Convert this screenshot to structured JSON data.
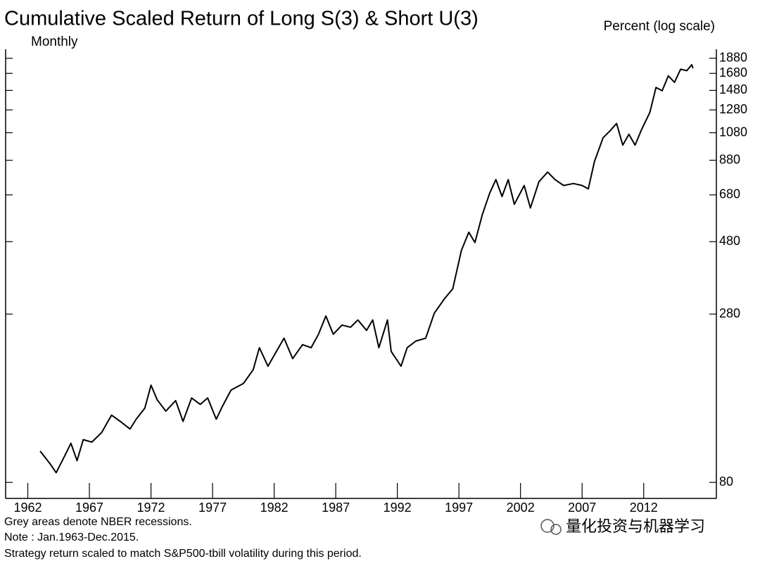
{
  "chart_data": {
    "type": "line",
    "title": "Cumulative Scaled Return of Long S(3) & Short U(3)",
    "subtitle": "Monthly",
    "y_axis_label": "Percent (log scale)",
    "notes": [
      "Grey areas denote NBER recessions.",
      "Note : Jan.1963-Dec.2015.",
      "Strategy return scaled to match S&P500-tbill volatility during this period."
    ],
    "watermark": "量化投资与机器学习",
    "log_scale": true,
    "color": "#000000",
    "xlim": [
      1960.2,
      2017.9
    ],
    "ylim": [
      71,
      2010
    ],
    "xticks": [
      1962,
      1967,
      1972,
      1977,
      1982,
      1987,
      1992,
      1997,
      2002,
      2007,
      2012
    ],
    "yticks": [
      80,
      280,
      480,
      680,
      880,
      1080,
      1280,
      1480,
      1680,
      1880
    ],
    "x": [
      1963.0,
      1963.8,
      1964.3,
      1964.8,
      1965.5,
      1966.0,
      1966.5,
      1967.2,
      1968.0,
      1968.8,
      1969.5,
      1970.3,
      1970.8,
      1971.5,
      1972.0,
      1972.5,
      1973.2,
      1974.0,
      1974.6,
      1975.3,
      1976.0,
      1976.6,
      1977.3,
      1977.8,
      1978.5,
      1979.5,
      1980.3,
      1980.8,
      1981.5,
      1982.0,
      1982.8,
      1983.5,
      1984.3,
      1985.0,
      1985.6,
      1986.2,
      1986.8,
      1987.5,
      1988.2,
      1988.8,
      1989.5,
      1990.0,
      1990.5,
      1991.2,
      1991.5,
      1992.3,
      1992.8,
      1993.5,
      1994.3,
      1995.0,
      1995.8,
      1996.5,
      1997.2,
      1997.8,
      1998.3,
      1998.9,
      1999.5,
      2000.0,
      2000.5,
      2001.0,
      2001.5,
      2002.3,
      2002.8,
      2003.5,
      2004.2,
      2004.8,
      2005.5,
      2006.3,
      2007.0,
      2007.5,
      2008.0,
      2008.7,
      2009.3,
      2009.8,
      2010.3,
      2010.8,
      2011.3,
      2011.8,
      2012.5,
      2013.0,
      2013.5,
      2014.0,
      2014.5,
      2015.0,
      2015.5,
      2015.9,
      2016.0
    ],
    "values": [
      101,
      92,
      86,
      94,
      107,
      94,
      110,
      108,
      116,
      132,
      126,
      119,
      128,
      139,
      165,
      148,
      136,
      147,
      126,
      150,
      143,
      150,
      128,
      141,
      159,
      167,
      185,
      218,
      190,
      206,
      234,
      201,
      223,
      218,
      241,
      276,
      241,
      258,
      254,
      268,
      248,
      268,
      218,
      268,
      212,
      190,
      218,
      229,
      234,
      282,
      313,
      338,
      450,
      515,
      477,
      587,
      689,
      762,
      672,
      762,
      634,
      729,
      617,
      750,
      806,
      762,
      729,
      740,
      729,
      711,
      871,
      1040,
      1099,
      1157,
      985,
      1068,
      985,
      1099,
      1257,
      1512,
      1476,
      1650,
      1571,
      1733,
      1714,
      1792,
      1745
    ]
  }
}
